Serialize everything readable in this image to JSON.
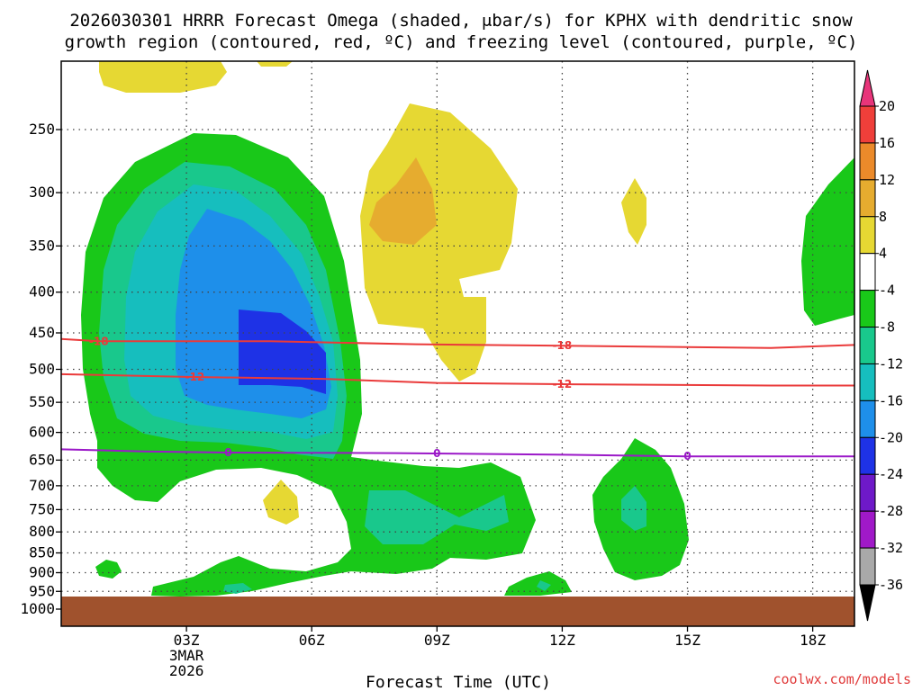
{
  "chart_data": {
    "type": "contour",
    "title_line1": "2026030301 HRRR Forecast Omega (shaded, μbar/s) for KPHX with dendritic snow",
    "title_line2": "growth region (contoured, red, ºC) and freezing level (contoured, purple, ºC)",
    "xlabel": "Forecast Time (UTC)",
    "ylabel": "",
    "x_hours": [
      0,
      19
    ],
    "x_ticks": [
      {
        "hour": 3,
        "label": "03Z",
        "sub1": "3MAR",
        "sub2": "2026"
      },
      {
        "hour": 6,
        "label": "06Z"
      },
      {
        "hour": 9,
        "label": "09Z"
      },
      {
        "hour": 12,
        "label": "12Z"
      },
      {
        "hour": 15,
        "label": "15Z"
      },
      {
        "hour": 18,
        "label": "18Z"
      }
    ],
    "y_ticks": [
      "250",
      "300",
      "350",
      "400",
      "450",
      "500",
      "550",
      "600",
      "650",
      "700",
      "750",
      "800",
      "850",
      "900",
      "950",
      "1000"
    ],
    "y_tick_values": [
      250,
      300,
      350,
      400,
      450,
      500,
      550,
      600,
      650,
      700,
      750,
      800,
      850,
      900,
      950,
      1000
    ],
    "ylim_hpa": [
      200,
      1000
    ],
    "colorbar": {
      "labels": [
        "20",
        "16",
        "12",
        "8",
        "4",
        "-4",
        "-8",
        "-12",
        "-16",
        "-20",
        "-24",
        "-28",
        "-32",
        "-36"
      ],
      "colors": [
        "#e8357a",
        "#ef3f3a",
        "#eb8a2a",
        "#e6ac2f",
        "#e6d833",
        "#ffffff",
        "#19c819",
        "#19c88c",
        "#16bebe",
        "#1e8fea",
        "#1e32e6",
        "#6e19c8",
        "#a019c8",
        "#a9a9a9",
        "#000000"
      ]
    },
    "contours": [
      {
        "label": "-18",
        "color": "#ea3a3a",
        "hours": [
          0,
          0.9,
          5,
          8.5,
          12,
          17,
          19
        ],
        "hpa": [
          458,
          461,
          461,
          465,
          467,
          470,
          466
        ],
        "label_positions": [
          0.9,
          12
        ]
      },
      {
        "label": "-12",
        "color": "#ea3a3a",
        "hours": [
          0,
          3,
          6.3,
          9,
          12,
          17,
          19
        ],
        "hpa": [
          507,
          511,
          514,
          520,
          522,
          524,
          524
        ],
        "label_positions": [
          3.2,
          12
        ]
      },
      {
        "label": "0",
        "color": "#9b19c8",
        "hours": [
          0,
          2,
          4,
          8,
          12,
          15,
          19
        ],
        "hpa": [
          630,
          634,
          636,
          637,
          640,
          643,
          643
        ],
        "label_positions": [
          4,
          9,
          15
        ]
      }
    ],
    "credit": "coolwx.com/models"
  }
}
